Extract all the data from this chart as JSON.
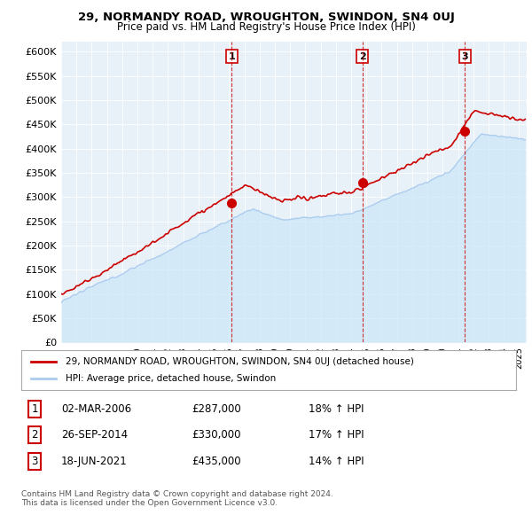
{
  "title": "29, NORMANDY ROAD, WROUGHTON, SWINDON, SN4 0UJ",
  "subtitle": "Price paid vs. HM Land Registry's House Price Index (HPI)",
  "ylabel_ticks": [
    "£0",
    "£50K",
    "£100K",
    "£150K",
    "£200K",
    "£250K",
    "£300K",
    "£350K",
    "£400K",
    "£450K",
    "£500K",
    "£550K",
    "£600K"
  ],
  "ytick_values": [
    0,
    50000,
    100000,
    150000,
    200000,
    250000,
    300000,
    350000,
    400000,
    450000,
    500000,
    550000,
    600000
  ],
  "ylim": [
    0,
    620000
  ],
  "transactions": [
    {
      "num": 1,
      "date_str": "02-MAR-2006",
      "year": 2006.17,
      "price": 287000,
      "hpi_pct": "18% ↑ HPI"
    },
    {
      "num": 2,
      "date_str": "26-SEP-2014",
      "year": 2014.73,
      "price": 330000,
      "hpi_pct": "17% ↑ HPI"
    },
    {
      "num": 3,
      "date_str": "18-JUN-2021",
      "year": 2021.46,
      "price": 435000,
      "hpi_pct": "14% ↑ HPI"
    }
  ],
  "hpi_color": "#aaccee",
  "hpi_fill_color": "#d0e8f8",
  "price_color": "#cc0000",
  "vline_color": "#cc0000",
  "legend_label_price": "29, NORMANDY ROAD, WROUGHTON, SWINDON, SN4 0UJ (detached house)",
  "legend_label_hpi": "HPI: Average price, detached house, Swindon",
  "footer1": "Contains HM Land Registry data © Crown copyright and database right 2024.",
  "footer2": "This data is licensed under the Open Government Licence v3.0.",
  "xmin": 1995,
  "xmax": 2025.5,
  "background_color": "#ffffff",
  "plot_bg_color": "#e8f0f8",
  "grid_color": "#ffffff"
}
